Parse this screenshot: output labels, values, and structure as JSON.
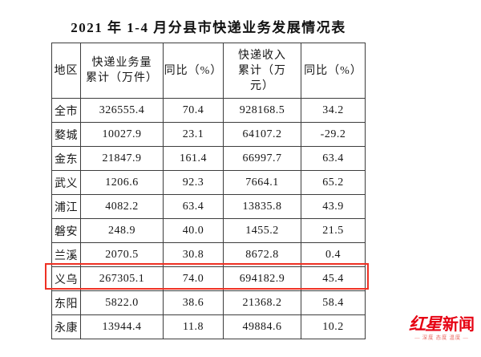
{
  "title": "2021 年 1-4 月分县市快递业务发展情况表",
  "table": {
    "headers": [
      "地区",
      "快递业务量\n累计（万件）",
      "同比（%）",
      "快递收入\n累计（万\n元）",
      "同比（%）"
    ],
    "rows": [
      {
        "region": "全市",
        "volume": "326555.4",
        "volume_yoy": "70.4",
        "revenue": "928168.5",
        "revenue_yoy": "34.2"
      },
      {
        "region": "婺城",
        "volume": "10027.9",
        "volume_yoy": "23.1",
        "revenue": "64107.2",
        "revenue_yoy": "-29.2"
      },
      {
        "region": "金东",
        "volume": "21847.9",
        "volume_yoy": "161.4",
        "revenue": "66997.7",
        "revenue_yoy": "63.4"
      },
      {
        "region": "武义",
        "volume": "1206.6",
        "volume_yoy": "92.3",
        "revenue": "7664.1",
        "revenue_yoy": "65.2"
      },
      {
        "region": "浦江",
        "volume": "4082.2",
        "volume_yoy": "63.4",
        "revenue": "13835.8",
        "revenue_yoy": "43.9"
      },
      {
        "region": "磐安",
        "volume": "248.9",
        "volume_yoy": "40.0",
        "revenue": "1455.2",
        "revenue_yoy": "21.5"
      },
      {
        "region": "兰溪",
        "volume": "2070.5",
        "volume_yoy": "30.8",
        "revenue": "8672.8",
        "revenue_yoy": "0.4"
      },
      {
        "region": "义乌",
        "volume": "267305.1",
        "volume_yoy": "74.0",
        "revenue": "694182.9",
        "revenue_yoy": "45.4"
      },
      {
        "region": "东阳",
        "volume": "5822.0",
        "volume_yoy": "38.6",
        "revenue": "21368.2",
        "revenue_yoy": "58.4"
      },
      {
        "region": "永康",
        "volume": "13944.4",
        "volume_yoy": "11.8",
        "revenue": "49884.6",
        "revenue_yoy": "10.2"
      }
    ],
    "highlight": {
      "region": "义乌",
      "border_color": "#ee3124"
    },
    "border_color": "#3d3d3d"
  },
  "watermark": {
    "brand": "红星新闻",
    "brand_part1": "红星",
    "brand_part2": "新闻",
    "tagline": "— 深度 态度 温度 —",
    "color": "#e60012"
  }
}
